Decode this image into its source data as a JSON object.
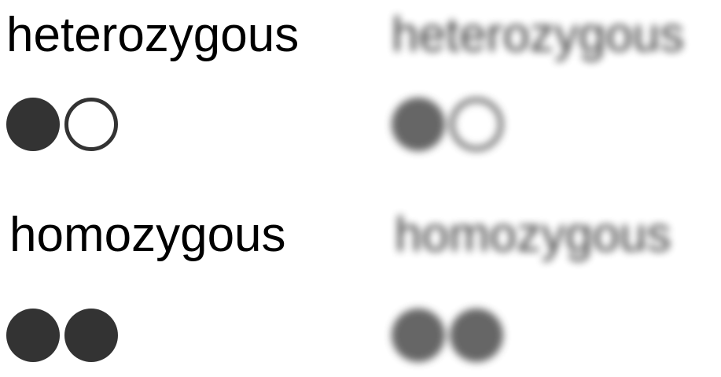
{
  "heterozygous": {
    "label": "heterozygous",
    "alleles": [
      "filled",
      "empty"
    ]
  },
  "homozygous": {
    "label": "homozygous",
    "alleles": [
      "filled",
      "filled"
    ]
  },
  "colors": {
    "allele_fill": "#333333",
    "background": "#ffffff",
    "text": "#000000"
  }
}
